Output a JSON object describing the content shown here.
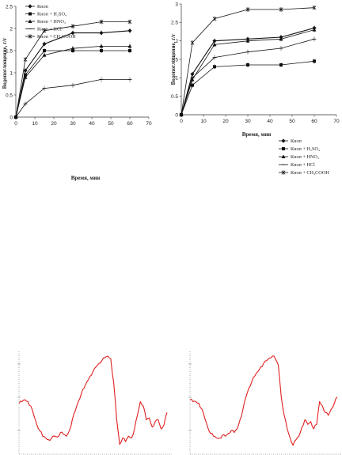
{
  "figures": {
    "chart_left": {
      "xlabel": "Время, мин",
      "ylabel": "Водопоглощение, г/г"
    },
    "chart_right": {
      "xlabel": "Время, мин",
      "ylabel": "Водопоглощение, г/г"
    }
  },
  "chart_data": [
    {
      "type": "line",
      "title": "",
      "xlabel": "Время, мин",
      "ylabel": "Водопоглощение, г/г",
      "xlim": [
        0,
        70
      ],
      "ylim": [
        0,
        2.5
      ],
      "x_ticks": [
        0,
        10,
        20,
        30,
        40,
        50,
        60,
        70
      ],
      "y_ticks": [
        0,
        0.5,
        1,
        1.5,
        2,
        2.5
      ],
      "legend_position": "top-left",
      "x": [
        0,
        5,
        15,
        30,
        45,
        60
      ],
      "series": [
        {
          "name": "Кноп",
          "marker": "diamond",
          "values": [
            0,
            1.05,
            1.65,
            1.9,
            1.9,
            1.95
          ]
        },
        {
          "name": "Кноп + H₂SO₄",
          "marker": "square",
          "values": [
            0,
            0.95,
            1.5,
            1.5,
            1.5,
            1.5
          ]
        },
        {
          "name": "Кноп + HNO₃",
          "marker": "triangle",
          "values": [
            0,
            0.9,
            1.4,
            1.55,
            1.6,
            1.6
          ]
        },
        {
          "name": "Кноп + HCl",
          "marker": "cross",
          "values": [
            0,
            0.3,
            0.65,
            0.72,
            0.85,
            0.85
          ]
        },
        {
          "name": "Кноп + CH₃COOH",
          "marker": "star",
          "values": [
            0,
            1.3,
            1.95,
            2.05,
            2.15,
            2.15
          ]
        }
      ]
    },
    {
      "type": "line",
      "title": "",
      "xlabel": "Время, мин",
      "ylabel": "Водопоглощение, г/г",
      "xlim": [
        0,
        70
      ],
      "ylim": [
        0,
        3
      ],
      "x_ticks": [
        0,
        10,
        20,
        30,
        40,
        50,
        60,
        70
      ],
      "y_ticks": [
        0,
        0.5,
        1,
        1.5,
        2,
        2.5,
        3
      ],
      "legend_position": "bottom-right",
      "x": [
        0,
        5,
        15,
        30,
        45,
        60
      ],
      "series": [
        {
          "name": "Кноп",
          "marker": "diamond",
          "values": [
            0,
            1.1,
            2.0,
            2.05,
            2.1,
            2.35
          ]
        },
        {
          "name": "Кноп + H₂SO₄",
          "marker": "square",
          "values": [
            0,
            0.8,
            1.3,
            1.35,
            1.35,
            1.45
          ]
        },
        {
          "name": "Кноп + HNO₃",
          "marker": "triangle",
          "values": [
            0,
            0.95,
            1.9,
            2.0,
            2.05,
            2.3
          ]
        },
        {
          "name": "Кноп + HCl",
          "marker": "cross",
          "values": [
            0,
            1.0,
            1.55,
            1.7,
            1.8,
            2.05
          ]
        },
        {
          "name": "Кноп + CH₃COOH",
          "marker": "star",
          "values": [
            0,
            1.95,
            2.6,
            2.85,
            2.85,
            2.9
          ]
        }
      ]
    },
    {
      "type": "line",
      "title": "",
      "xlabel": "",
      "ylabel": "",
      "x": [
        0,
        2,
        4,
        6,
        8,
        10,
        12,
        14,
        16,
        18,
        20,
        22,
        24,
        26,
        28,
        30,
        32,
        34,
        36,
        38,
        40,
        42,
        44,
        46,
        48,
        50,
        52,
        54,
        56,
        58,
        60,
        62,
        64,
        66,
        68,
        70,
        72,
        74,
        76,
        78,
        80,
        82,
        84,
        86,
        88,
        90,
        92,
        94,
        96,
        98,
        100
      ],
      "series": [
        {
          "name": "",
          "values": [
            0.48,
            0.5,
            0.52,
            0.5,
            0.45,
            0.35,
            0.25,
            0.18,
            0.12,
            0.1,
            0.08,
            0.1,
            0.12,
            0.11,
            0.16,
            0.14,
            0.12,
            0.18,
            0.3,
            0.4,
            0.5,
            0.58,
            0.65,
            0.72,
            0.78,
            0.83,
            0.88,
            0.92,
            0.95,
            0.98,
            1.0,
            0.97,
            0.7,
            0.3,
            0.03,
            0.1,
            0.06,
            0.12,
            0.1,
            0.2,
            0.35,
            0.5,
            0.45,
            0.3,
            0.32,
            0.22,
            0.28,
            0.3,
            0.2,
            0.25,
            0.38
          ]
        }
      ]
    },
    {
      "type": "line",
      "title": "",
      "xlabel": "",
      "ylabel": "",
      "x": [
        0,
        2,
        4,
        6,
        8,
        10,
        12,
        14,
        16,
        18,
        20,
        22,
        24,
        26,
        28,
        30,
        32,
        34,
        36,
        38,
        40,
        42,
        44,
        46,
        48,
        50,
        52,
        54,
        56,
        58,
        60,
        62,
        64,
        66,
        68,
        70,
        72,
        74,
        76,
        78,
        80,
        82,
        84,
        86,
        88,
        90,
        92,
        94,
        96,
        98,
        100
      ],
      "series": [
        {
          "name": "",
          "values": [
            0.52,
            0.5,
            0.5,
            0.48,
            0.42,
            0.32,
            0.22,
            0.15,
            0.12,
            0.1,
            0.1,
            0.13,
            0.12,
            0.15,
            0.18,
            0.16,
            0.2,
            0.3,
            0.42,
            0.55,
            0.65,
            0.72,
            0.78,
            0.83,
            0.88,
            0.92,
            0.95,
            0.98,
            1.0,
            0.97,
            0.9,
            0.55,
            0.35,
            0.2,
            0.1,
            0.02,
            0.08,
            0.12,
            0.22,
            0.3,
            0.25,
            0.28,
            0.2,
            0.25,
            0.5,
            0.45,
            0.38,
            0.35,
            0.42,
            0.48,
            0.55
          ]
        }
      ]
    }
  ]
}
